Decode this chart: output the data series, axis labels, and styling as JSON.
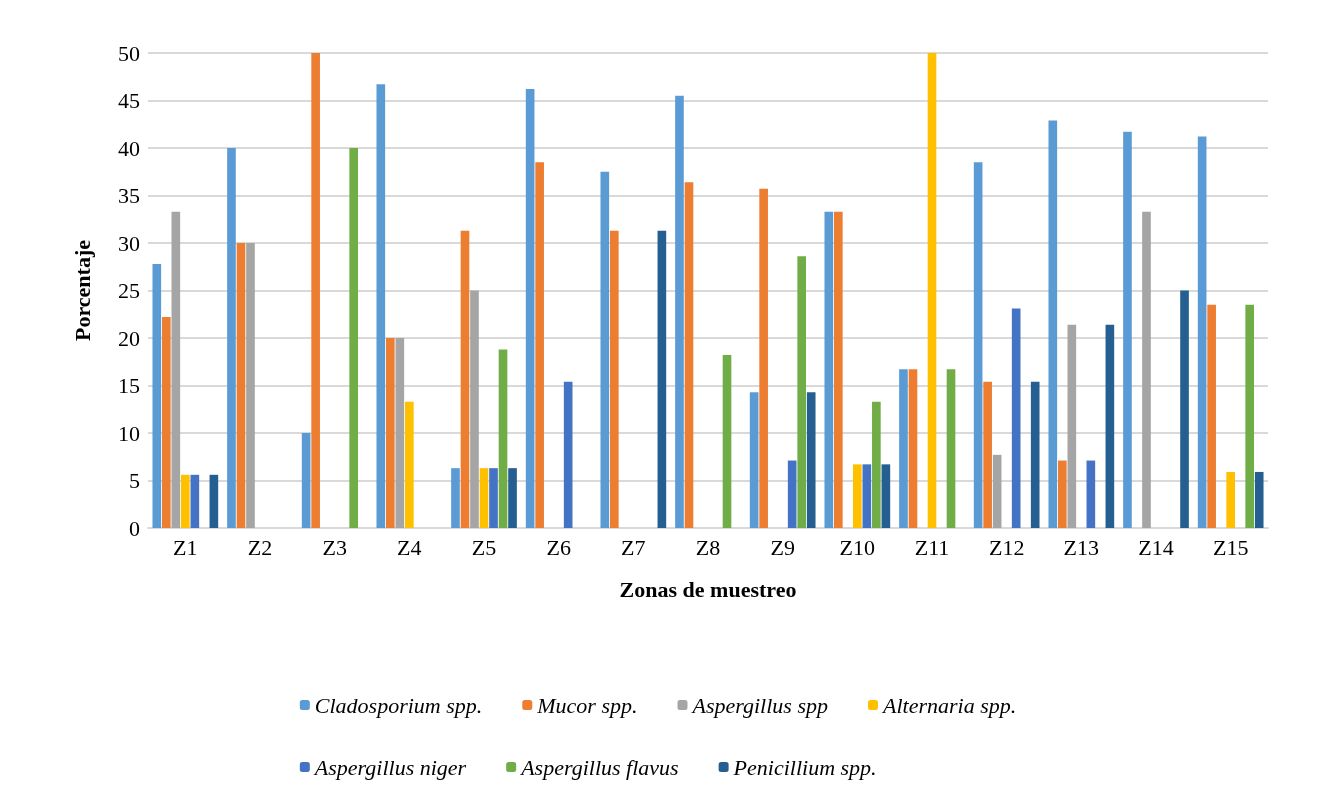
{
  "chart_data": {
    "type": "bar",
    "xlabel": "Zonas de muestreo",
    "ylabel": "Porcentaje",
    "categories": [
      "Z1",
      "Z2",
      "Z3",
      "Z4",
      "Z5",
      "Z6",
      "Z7",
      "Z8",
      "Z9",
      "Z10",
      "Z11",
      "Z12",
      "Z13",
      "Z14",
      "Z15"
    ],
    "series": [
      {
        "name": "Cladosporium spp.",
        "color": "#5b9bd5",
        "values": [
          27.8,
          40,
          10,
          46.7,
          6.3,
          46.2,
          37.5,
          45.5,
          14.3,
          33.3,
          16.7,
          38.5,
          42.9,
          41.7,
          41.2
        ]
      },
      {
        "name": "Mucor spp.",
        "color": "#ed7d31",
        "values": [
          22.2,
          30,
          50,
          20,
          31.3,
          38.5,
          31.3,
          36.4,
          35.7,
          33.3,
          16.7,
          15.4,
          7.1,
          0,
          23.5
        ]
      },
      {
        "name": "Aspergillus spp",
        "color": "#a5a5a5",
        "values": [
          33.3,
          30,
          0,
          20,
          25,
          0,
          0,
          0,
          0,
          0,
          0,
          7.7,
          21.4,
          33.3,
          0
        ]
      },
      {
        "name": "Alternaria spp.",
        "color": "#ffc000",
        "values": [
          5.6,
          0,
          0,
          13.3,
          6.3,
          0,
          0,
          0,
          0,
          6.7,
          50,
          0,
          0,
          0,
          5.9
        ]
      },
      {
        "name": "Aspergillus niger",
        "color": "#4472c4",
        "values": [
          5.6,
          0,
          0,
          0,
          6.3,
          15.4,
          0,
          0,
          7.1,
          6.7,
          0,
          23.1,
          7.1,
          0,
          0
        ]
      },
      {
        "name": "Aspergillus flavus",
        "color": "#70ad47",
        "values": [
          0,
          0,
          40,
          0,
          18.8,
          0,
          0,
          18.2,
          28.6,
          13.3,
          16.7,
          0,
          0,
          0,
          23.5
        ]
      },
      {
        "name": "Penicillium spp.",
        "color": "#255e91",
        "values": [
          5.6,
          0,
          0,
          0,
          6.3,
          0,
          31.3,
          0,
          14.3,
          6.7,
          0,
          15.4,
          21.4,
          25,
          5.9
        ]
      }
    ],
    "ylim": [
      0,
      50
    ],
    "yticks": [
      0,
      5,
      10,
      15,
      20,
      25,
      30,
      35,
      40,
      45,
      50
    ],
    "grid": "y",
    "legend": "bottom"
  }
}
